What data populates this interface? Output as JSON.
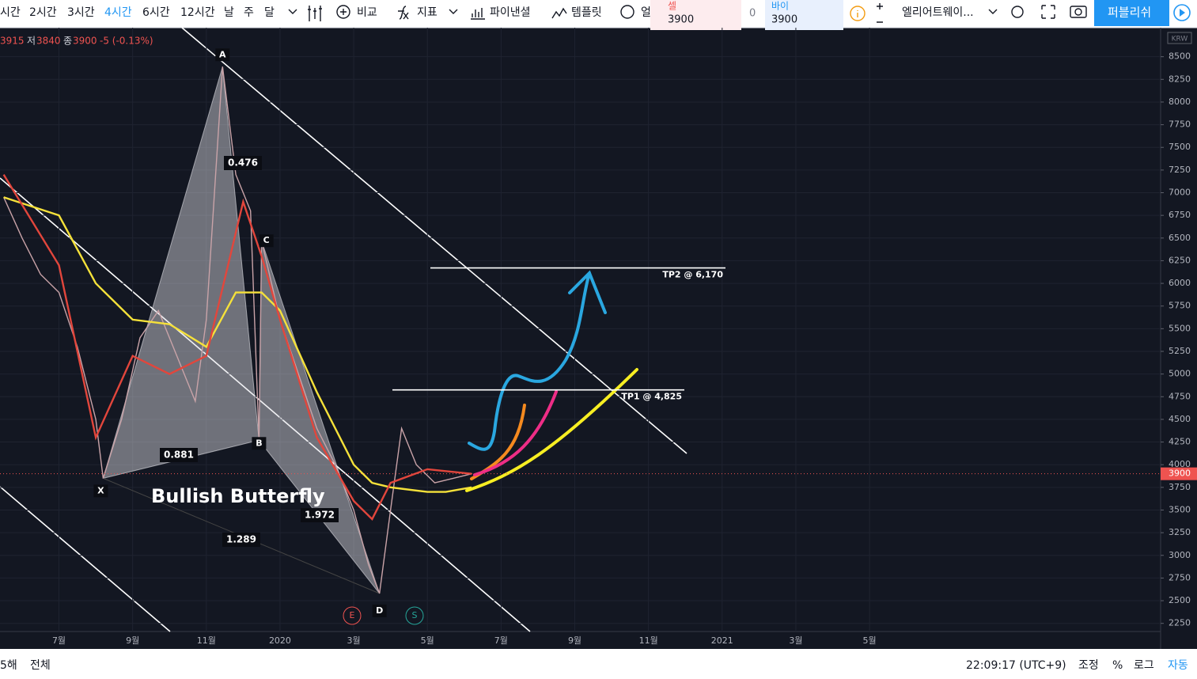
{
  "toolbar": {
    "intervals": [
      "시간",
      "2시간",
      "3시간",
      "4시간",
      "6시간",
      "12시간",
      "날",
      "주",
      "달"
    ],
    "active_interval": 3,
    "buttons": [
      "비교",
      "지표",
      "파이낸셜",
      "템플릿",
      "얼"
    ],
    "sell": {
      "label": "셀",
      "price": 3900
    },
    "spread": 0,
    "buy": {
      "label": "바이",
      "price": 3900
    },
    "layout_name": "엘리어트웨이...",
    "publish": "퍼블리쉬"
  },
  "ohlc": {
    "high": 3915,
    "low_label": "저",
    "low": 3840,
    "close_label": "종",
    "close": 3900,
    "change": "-5 (-0.13%)"
  },
  "chart_data": {
    "type": "line",
    "currency": "KRW",
    "current_price": 3900,
    "xlim": [
      4.4,
      35.9
    ],
    "xticks": [
      {
        "value": 6,
        "label": "7월"
      },
      {
        "value": 8,
        "label": "9월"
      },
      {
        "value": 10,
        "label": "11월"
      },
      {
        "value": 12,
        "label": "2020"
      },
      {
        "value": 14,
        "label": "3월"
      },
      {
        "value": 16,
        "label": "5월"
      },
      {
        "value": 18,
        "label": "7월"
      },
      {
        "value": 20,
        "label": "9월"
      },
      {
        "value": 22,
        "label": "11월"
      },
      {
        "value": 24,
        "label": "2021"
      },
      {
        "value": 26,
        "label": "3월"
      },
      {
        "value": 28,
        "label": "5월"
      }
    ],
    "ylim": [
      2160,
      8820
    ],
    "yticks": [
      2250,
      2500,
      2750,
      3000,
      3250,
      3500,
      3750,
      4000,
      4250,
      4500,
      4750,
      5000,
      5250,
      5500,
      5750,
      6000,
      6250,
      6500,
      6750,
      7000,
      7250,
      7500,
      7750,
      8000,
      8250,
      8500
    ],
    "grid": true,
    "series": [
      {
        "color": "#c9a3a8",
        "x": [
          4.5,
          5.0,
          5.5,
          6.0,
          6.5,
          7.0,
          7.2,
          7.7,
          8.2,
          8.7,
          9.2,
          9.7,
          10.0,
          10.44,
          10.8,
          11.2,
          11.43,
          11.5,
          12.0,
          12.5,
          13.0,
          13.5,
          14.0,
          14.4,
          14.7,
          15.0,
          15.3,
          15.7,
          16.2,
          16.7,
          17.2
        ],
        "values": [
          6950,
          6500,
          6100,
          5900,
          5300,
          4500,
          3850,
          4500,
          5400,
          5700,
          5200,
          4700,
          5600,
          8390,
          7200,
          6800,
          4270,
          6470,
          5600,
          5000,
          4400,
          4000,
          3500,
          2900,
          2580,
          3500,
          4400,
          4000,
          3800,
          3850,
          3900
        ]
      },
      {
        "color": "#f5e13a",
        "x": [
          4.5,
          6.0,
          7.0,
          8.0,
          9.0,
          10.0,
          10.8,
          11.5,
          12.0,
          13.0,
          14.0,
          14.5,
          15.0,
          16.0,
          16.5,
          17.2
        ],
        "values": [
          6950,
          6750,
          6000,
          5600,
          5550,
          5300,
          5900,
          5900,
          5700,
          4800,
          4000,
          3800,
          3750,
          3700,
          3700,
          3750
        ]
      },
      {
        "color": "#e2463c",
        "x": [
          4.5,
          6.0,
          7.0,
          8.0,
          9.0,
          10.0,
          11.0,
          11.5,
          12.0,
          13.0,
          14.0,
          14.5,
          15.0,
          16.0,
          17.2
        ],
        "values": [
          7200,
          6200,
          4300,
          5200,
          5000,
          5200,
          6900,
          6300,
          5600,
          4300,
          3600,
          3400,
          3800,
          3950,
          3900
        ]
      }
    ],
    "pattern": {
      "name": "Bullish Butterfly",
      "points": [
        {
          "label": "X",
          "x": 7.2,
          "y": 3850
        },
        {
          "label": "A",
          "x": 10.44,
          "y": 8390
        },
        {
          "label": "B",
          "x": 11.43,
          "y": 4270
        },
        {
          "label": "C",
          "x": 11.5,
          "y": 6470
        },
        {
          "label": "D",
          "x": 14.7,
          "y": 2580
        }
      ],
      "ratios": [
        0.476,
        0.881,
        1.972,
        1.289
      ]
    },
    "targets": [
      {
        "label": "TP2 @ 6,170",
        "value": 6170
      },
      {
        "label": "TP1 @ 4,825",
        "value": 4825
      }
    ],
    "events": [
      "E",
      "S"
    ]
  },
  "footer": {
    "range": "5해",
    "all": "전체",
    "clock": "22:09:17 (UTC+9)",
    "adjust": "조정",
    "percent": "%",
    "log": "로그",
    "auto": "자동"
  }
}
